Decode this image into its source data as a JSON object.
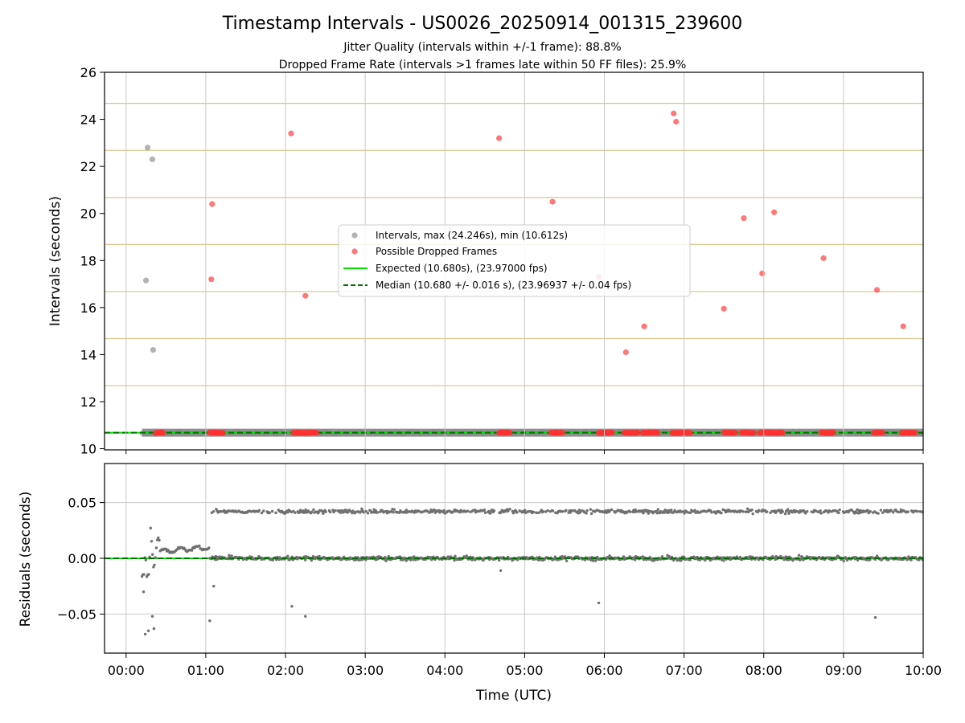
{
  "chart_data": {
    "type": "scatter",
    "title": "Timestamp Intervals - US0026_20250914_001315_239600",
    "subtitles": [
      "Jitter Quality (intervals within +/-1 frame): 88.8%",
      "Dropped Frame Rate (intervals >1 frames late within 50 FF files): 25.9%"
    ],
    "xlabel": "Time (UTC)",
    "x_ticks": [
      "00:00",
      "01:00",
      "02:00",
      "03:00",
      "04:00",
      "05:00",
      "06:00",
      "07:00",
      "08:00",
      "09:00",
      "10:00"
    ],
    "x_range_hours": [
      -0.27,
      10.0
    ],
    "grid": true,
    "colors": {
      "intervals": "#808080",
      "dropped": "#ff3030",
      "expected": "#00e000",
      "median": "#007000",
      "hlines": "#d4c48a"
    },
    "top_panel": {
      "ylabel": "Intervals (seconds)",
      "ylim": [
        9.95,
        26.0
      ],
      "y_ticks": [
        10,
        12,
        14,
        16,
        18,
        20,
        22,
        24,
        26
      ],
      "frame_lines": [
        10.68,
        12.68,
        14.68,
        16.68,
        18.68,
        20.68,
        22.68,
        24.68
      ],
      "expected": 10.68,
      "median": 10.68,
      "legend": {
        "position": "center",
        "entries": [
          "Intervals, max (24.246s), min (10.612s)",
          "Possible Dropped Frames",
          "Expected (10.680s), (23.97000 fps)",
          "Median (10.680 +/- 0.016 s), (23.96937 +/- 0.04 fps)"
        ]
      },
      "grey_outliers": [
        {
          "x": 0.27,
          "y": 22.8
        },
        {
          "x": 0.33,
          "y": 22.3
        },
        {
          "x": 0.25,
          "y": 17.15
        },
        {
          "x": 0.34,
          "y": 14.2
        }
      ],
      "dropped_points": [
        {
          "x": 1.08,
          "y": 20.4
        },
        {
          "x": 1.07,
          "y": 17.2
        },
        {
          "x": 2.07,
          "y": 23.4
        },
        {
          "x": 2.25,
          "y": 16.5
        },
        {
          "x": 4.68,
          "y": 23.2
        },
        {
          "x": 5.35,
          "y": 20.5
        },
        {
          "x": 5.93,
          "y": 17.3
        },
        {
          "x": 6.27,
          "y": 14.1
        },
        {
          "x": 6.5,
          "y": 15.2
        },
        {
          "x": 6.87,
          "y": 24.25
        },
        {
          "x": 6.9,
          "y": 23.9
        },
        {
          "x": 7.5,
          "y": 15.95
        },
        {
          "x": 7.75,
          "y": 19.8
        },
        {
          "x": 7.98,
          "y": 17.45
        },
        {
          "x": 8.13,
          "y": 20.05
        },
        {
          "x": 8.75,
          "y": 18.1
        },
        {
          "x": 9.42,
          "y": 16.75
        },
        {
          "x": 9.75,
          "y": 15.2
        }
      ],
      "dropped_clusters_at_median": [
        [
          0.37,
          0.47
        ],
        [
          1.05,
          1.22
        ],
        [
          2.1,
          2.4
        ],
        [
          4.68,
          4.82
        ],
        [
          5.33,
          5.48
        ],
        [
          5.93,
          6.1
        ],
        [
          6.25,
          6.42
        ],
        [
          6.48,
          6.68
        ],
        [
          6.85,
          7.08
        ],
        [
          7.5,
          7.65
        ],
        [
          7.72,
          7.88
        ],
        [
          7.95,
          8.25
        ],
        [
          8.72,
          8.88
        ],
        [
          9.38,
          9.5
        ],
        [
          9.73,
          9.9
        ]
      ]
    },
    "bottom_panel": {
      "ylabel": "Residuals (seconds)",
      "ylim": [
        -0.085,
        0.085
      ],
      "y_ticks": [
        0.05,
        0.0,
        -0.05
      ],
      "y_tick_labels": [
        "0.05",
        "0.00",
        "−0.05"
      ],
      "baseline": 0.0,
      "upper_band": 0.042,
      "outliers": [
        {
          "x": 0.22,
          "y": -0.03
        },
        {
          "x": 0.24,
          "y": -0.068
        },
        {
          "x": 0.28,
          "y": -0.065
        },
        {
          "x": 0.33,
          "y": -0.052
        },
        {
          "x": 0.35,
          "y": -0.063
        },
        {
          "x": 1.05,
          "y": -0.056
        },
        {
          "x": 1.1,
          "y": -0.025
        },
        {
          "x": 2.08,
          "y": -0.043
        },
        {
          "x": 2.25,
          "y": -0.052
        },
        {
          "x": 4.7,
          "y": -0.011
        },
        {
          "x": 5.93,
          "y": -0.04
        },
        {
          "x": 9.4,
          "y": -0.053
        }
      ]
    }
  }
}
